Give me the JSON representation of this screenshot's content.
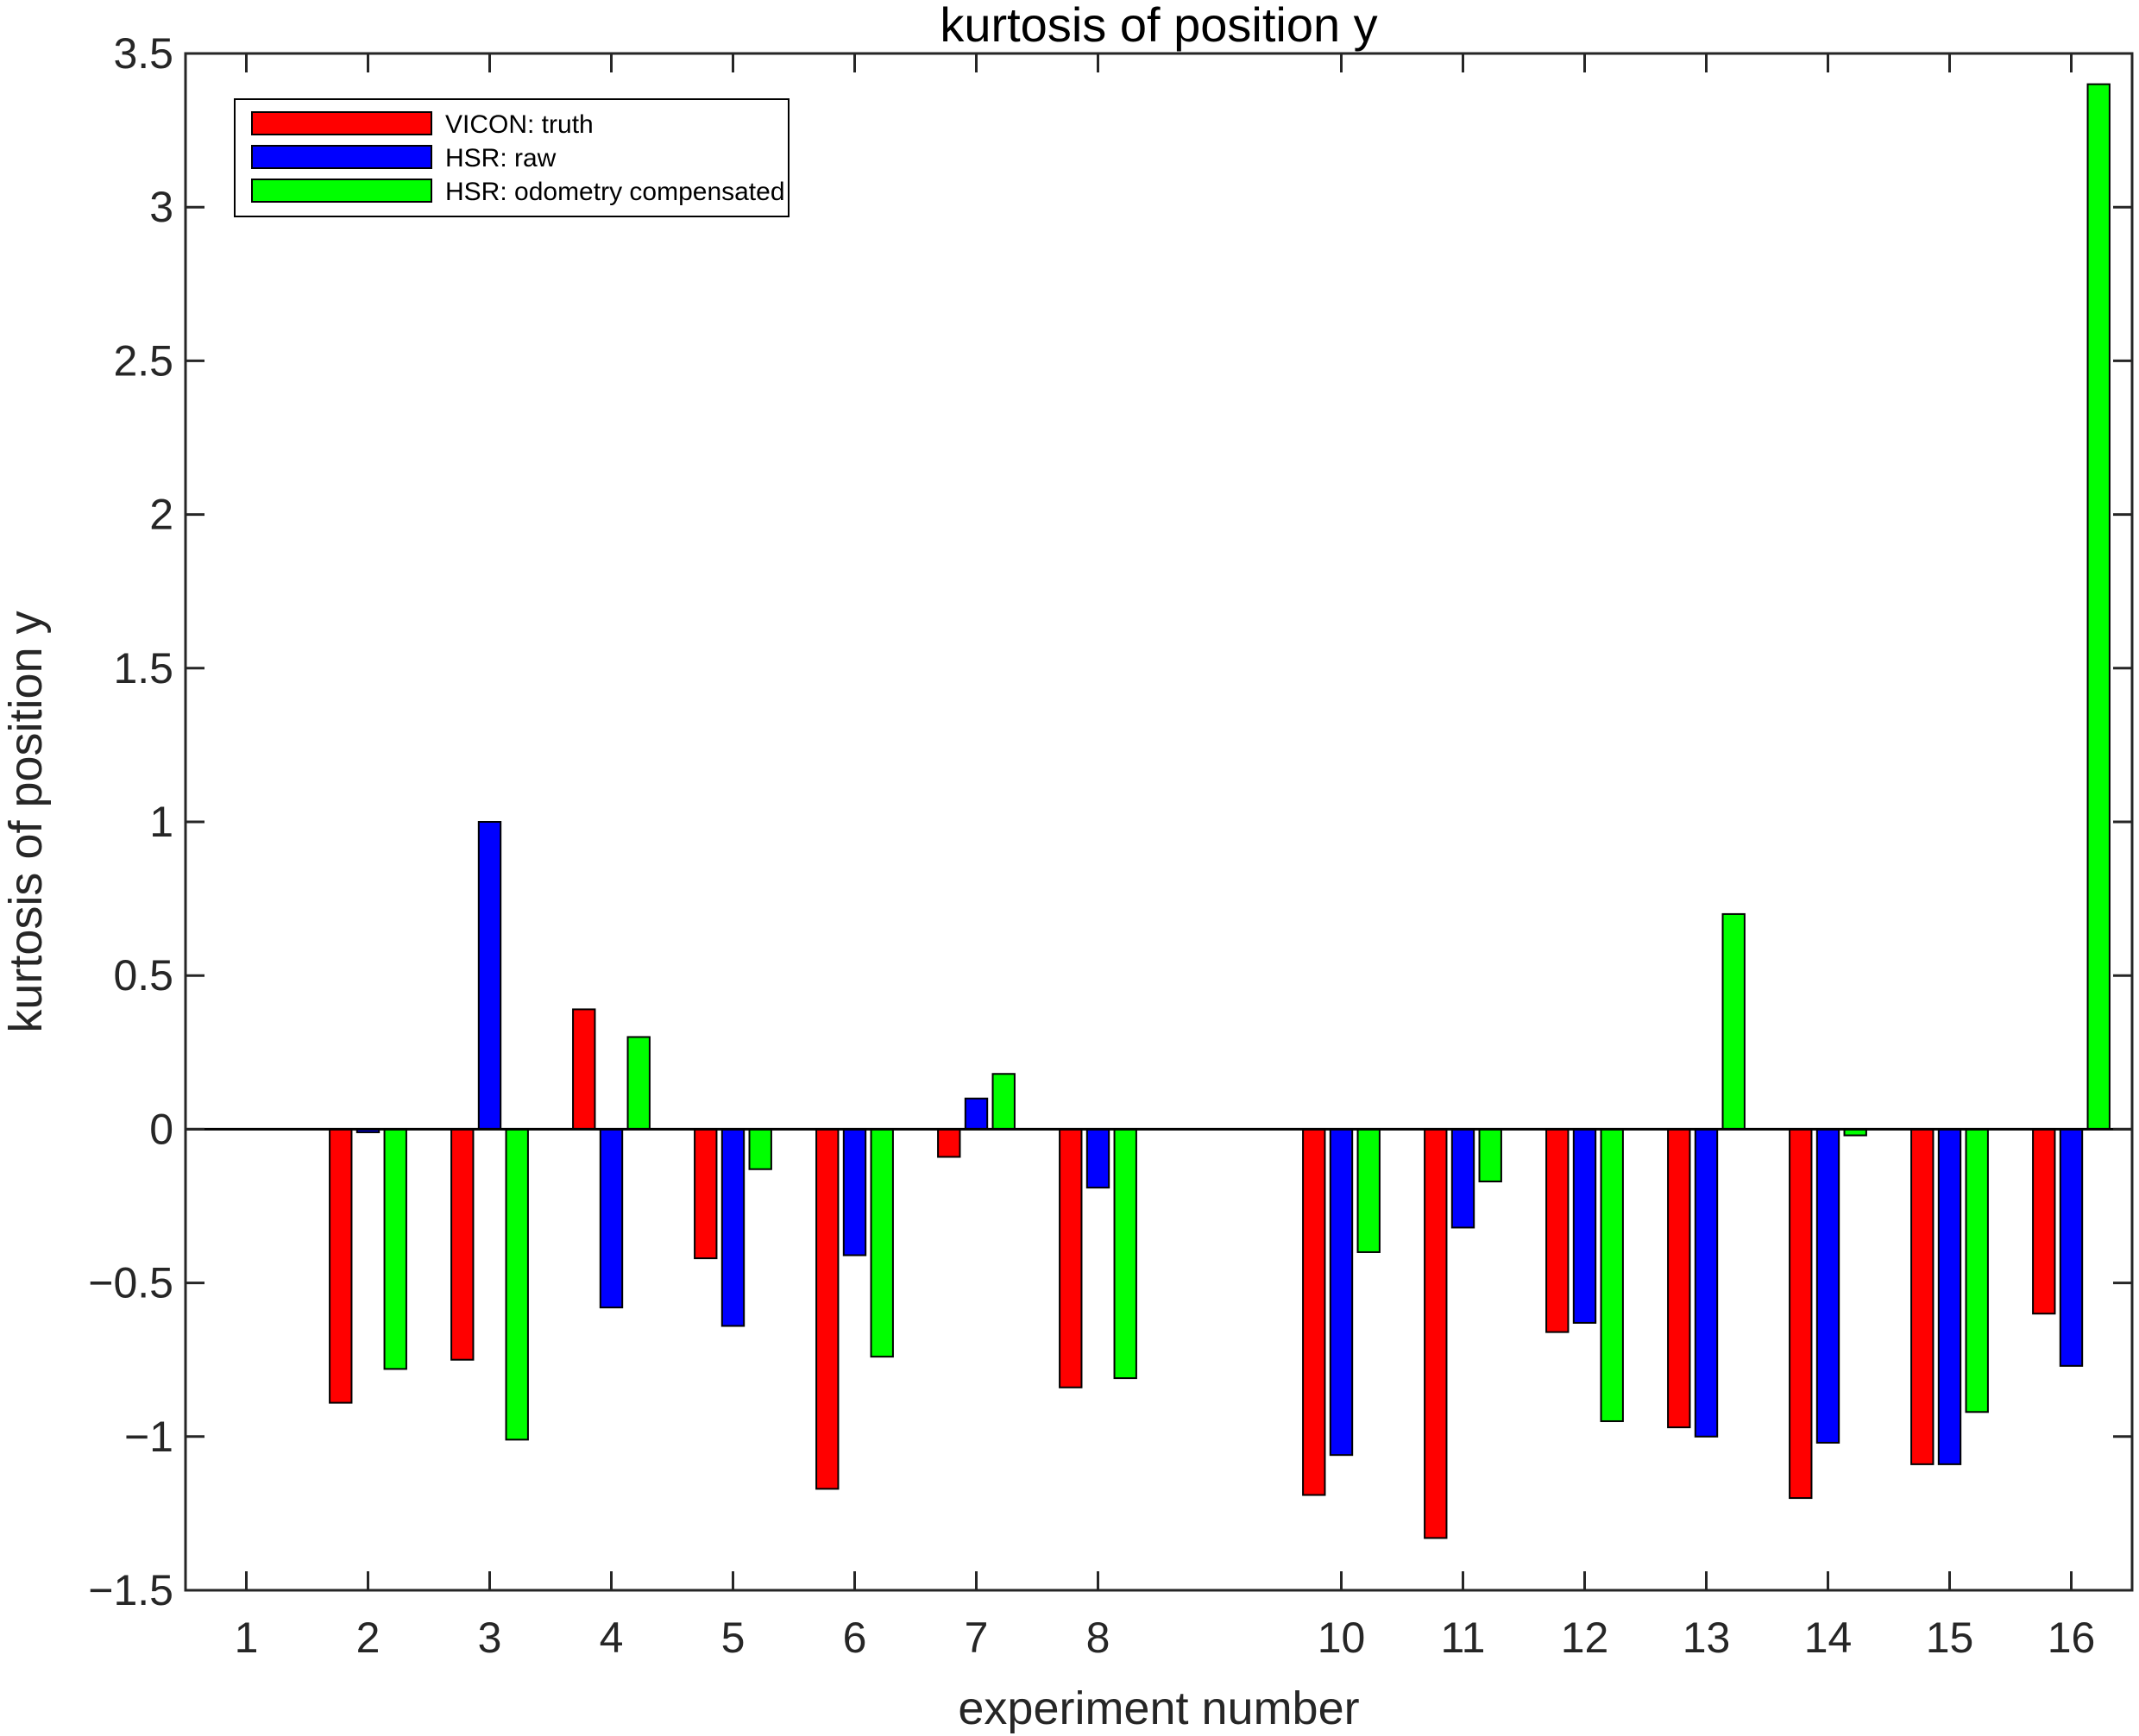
{
  "chart_data": {
    "type": "bar",
    "title": "kurtosis of position y",
    "xlabel": "experiment number",
    "ylabel": "kurtosis of position y",
    "ylim": [
      -1.5,
      3.5
    ],
    "xlim": [
      0.5,
      16.5
    ],
    "yticks": [
      -1.5,
      -1,
      -0.5,
      0,
      0.5,
      1,
      1.5,
      2,
      2.5,
      3,
      3.5
    ],
    "ytick_labels": [
      "−1.5",
      "−1",
      "−0.5",
      "0",
      "0.5",
      "1",
      "1.5",
      "2",
      "2.5",
      "3",
      "3.5"
    ],
    "x": [
      1,
      2,
      3,
      4,
      5,
      6,
      7,
      8,
      10,
      11,
      12,
      13,
      14,
      15,
      16
    ],
    "categories": [
      "1",
      "2",
      "3",
      "4",
      "5",
      "6",
      "7",
      "8",
      "10",
      "11",
      "12",
      "13",
      "14",
      "15",
      "16"
    ],
    "series": [
      {
        "name": "VICON: truth",
        "color": "#ff0000",
        "values": [
          0.0,
          -0.89,
          -0.75,
          0.39,
          -0.42,
          -1.17,
          -0.09,
          -0.84,
          -1.19,
          -1.33,
          -0.66,
          -0.97,
          -1.2,
          -1.09,
          -0.6
        ]
      },
      {
        "name": "HSR: raw",
        "color": "#0000ff",
        "values": [
          0.0,
          -0.01,
          1.0,
          -0.58,
          -0.64,
          -0.41,
          0.1,
          -0.19,
          -1.06,
          -0.32,
          -0.63,
          -1.0,
          -1.02,
          -1.09,
          -0.77
        ]
      },
      {
        "name": "HSR: odometry compensated",
        "color": "#00ff00",
        "values": [
          0.0,
          -0.78,
          -1.01,
          0.3,
          -0.13,
          -0.74,
          0.18,
          -0.81,
          -0.4,
          -0.17,
          -0.95,
          0.7,
          -0.02,
          -0.92,
          3.4
        ]
      }
    ],
    "legend": "top-left",
    "grid": false
  }
}
